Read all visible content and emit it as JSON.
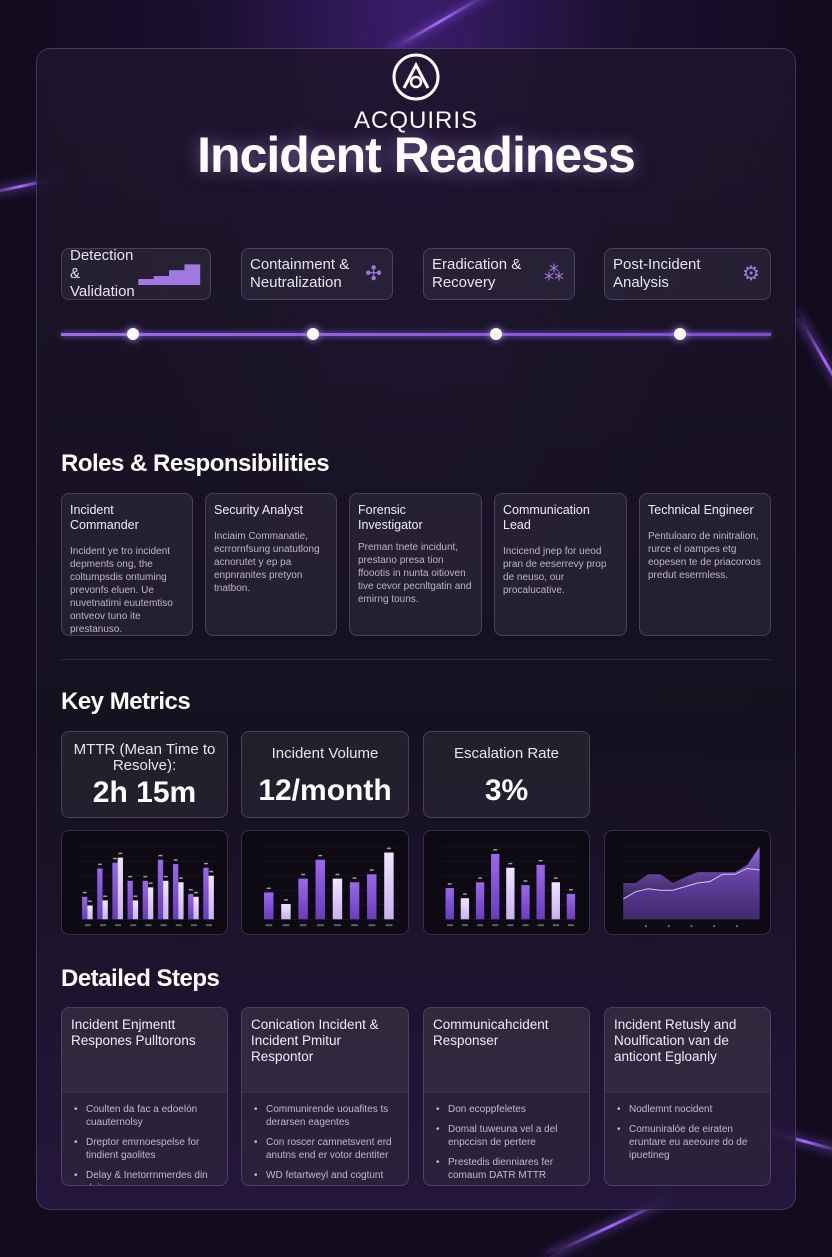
{
  "brand": {
    "name": "ACQUIRIS"
  },
  "title": "Incident Readiness",
  "phases": [
    {
      "label": "Detection & Validation",
      "icon": "signal-bars-icon",
      "glyph": "▂▃▅▇"
    },
    {
      "label": "Containment & Neutralization",
      "icon": "shield-arrows-icon",
      "glyph": "✣"
    },
    {
      "label": "Eradication & Recovery",
      "icon": "molecule-icon",
      "glyph": "⁂"
    },
    {
      "label": "Post-Incident Analysis",
      "icon": "gear-bug-icon",
      "glyph": "⚙"
    }
  ],
  "roles_heading": "Roles & Responsibilities",
  "roles": [
    {
      "title": "Incident Commander",
      "desc": "Incident ye tro incident depments ong, the coltumpsdis ontuming prevonfs eluen. Ue nuvetnatimi euutemtiso ontveov tuno ite prestanuso."
    },
    {
      "title": "Security Analyst",
      "desc": "Inciaim Commanatie, ecrrornfsung unatutlong acnorutet y ep pa enpnranites pretyon tnatbon."
    },
    {
      "title": "Forensic Investigator",
      "desc": "Preman tnete incidunt, prestano presa tion ffoootis in nunta oitioven tive cevor pecnltgatin and emirng touns."
    },
    {
      "title": "Communication Lead",
      "desc": "Incicend jnep for ueod pran de eeserrevy prop de neuso, our procalucative."
    },
    {
      "title": "Technical Engineer",
      "desc": "Pentuloaro de ninitralion, rurce el oampes etg eopesen te de priacoroos predut eserrnless."
    }
  ],
  "metrics_heading": "Key Metrics",
  "metrics": [
    {
      "label": "MTTR (Mean Time to Resolve):",
      "value": "2h 15m"
    },
    {
      "label": "Incident Volume",
      "value": "12/month"
    },
    {
      "label": "Escalation Rate",
      "value": "3%"
    }
  ],
  "chart_data": [
    {
      "type": "bar",
      "title": "",
      "ylim": [
        0,
        100
      ],
      "series": [
        {
          "name": "A",
          "values": [
            31,
            70,
            78,
            53,
            53,
            82,
            76,
            35,
            71
          ]
        },
        {
          "name": "B",
          "values": [
            19,
            26,
            85,
            26,
            44,
            53,
            51,
            31,
            60
          ]
        }
      ]
    },
    {
      "type": "bar",
      "title": "",
      "ylim": [
        0,
        100
      ],
      "series": [
        {
          "name": "A",
          "values": [
            37,
            21,
            56,
            82,
            56,
            51,
            62,
            92
          ]
        }
      ]
    },
    {
      "type": "bar",
      "title": "",
      "ylim": [
        0,
        100
      ],
      "series": [
        {
          "name": "A",
          "values": [
            43,
            29,
            51,
            90,
            71,
            47,
            75,
            51,
            35
          ]
        }
      ]
    },
    {
      "type": "area",
      "title": "",
      "ylim": [
        0,
        100
      ],
      "series": [
        {
          "name": "area",
          "values": [
            50,
            50,
            62,
            62,
            50,
            58,
            65,
            65,
            65,
            65,
            75,
            100
          ]
        },
        {
          "name": "line",
          "values": [
            28,
            38,
            42,
            40,
            40,
            45,
            50,
            52,
            62,
            62,
            70,
            68
          ]
        }
      ]
    }
  ],
  "colors": {
    "accent": "#9b6be6",
    "light": "#e6d6ff",
    "dark": "#7c4dd1"
  },
  "steps_heading": "Detailed Steps",
  "steps": [
    {
      "title": "Incident Enjmentt Respones Pulltorons",
      "items": [
        "Coulten da fac a edoelón cuauternolsy",
        "Dreptor emrnoespelse for tindient gaolites",
        "Delay & Inetorrnmerdes din dejtars"
      ]
    },
    {
      "title": "Conication Incident & Incident Pmitur Respontor",
      "items": [
        "Communirende uouafites ts derarsen eagentes",
        "Con roscer camnetsvent erd anutns end er votor dentiter",
        "WD fetartweyl and cogtunt"
      ]
    },
    {
      "title": "Communicahcident Responser",
      "items": [
        "Don ecoppfeletes",
        "Domal tuweuna vel a del enpccisn de pertere",
        "Prestedis dienniares fer comaum DATR MTTR"
      ]
    },
    {
      "title": "Incident Retusly and Noulfication van de anticont Egloanly",
      "items": [
        "Nodlemnt nocident",
        "Comuniralóe de eiraten eruntare eu aeeoure do de ipuetineg"
      ]
    }
  ]
}
